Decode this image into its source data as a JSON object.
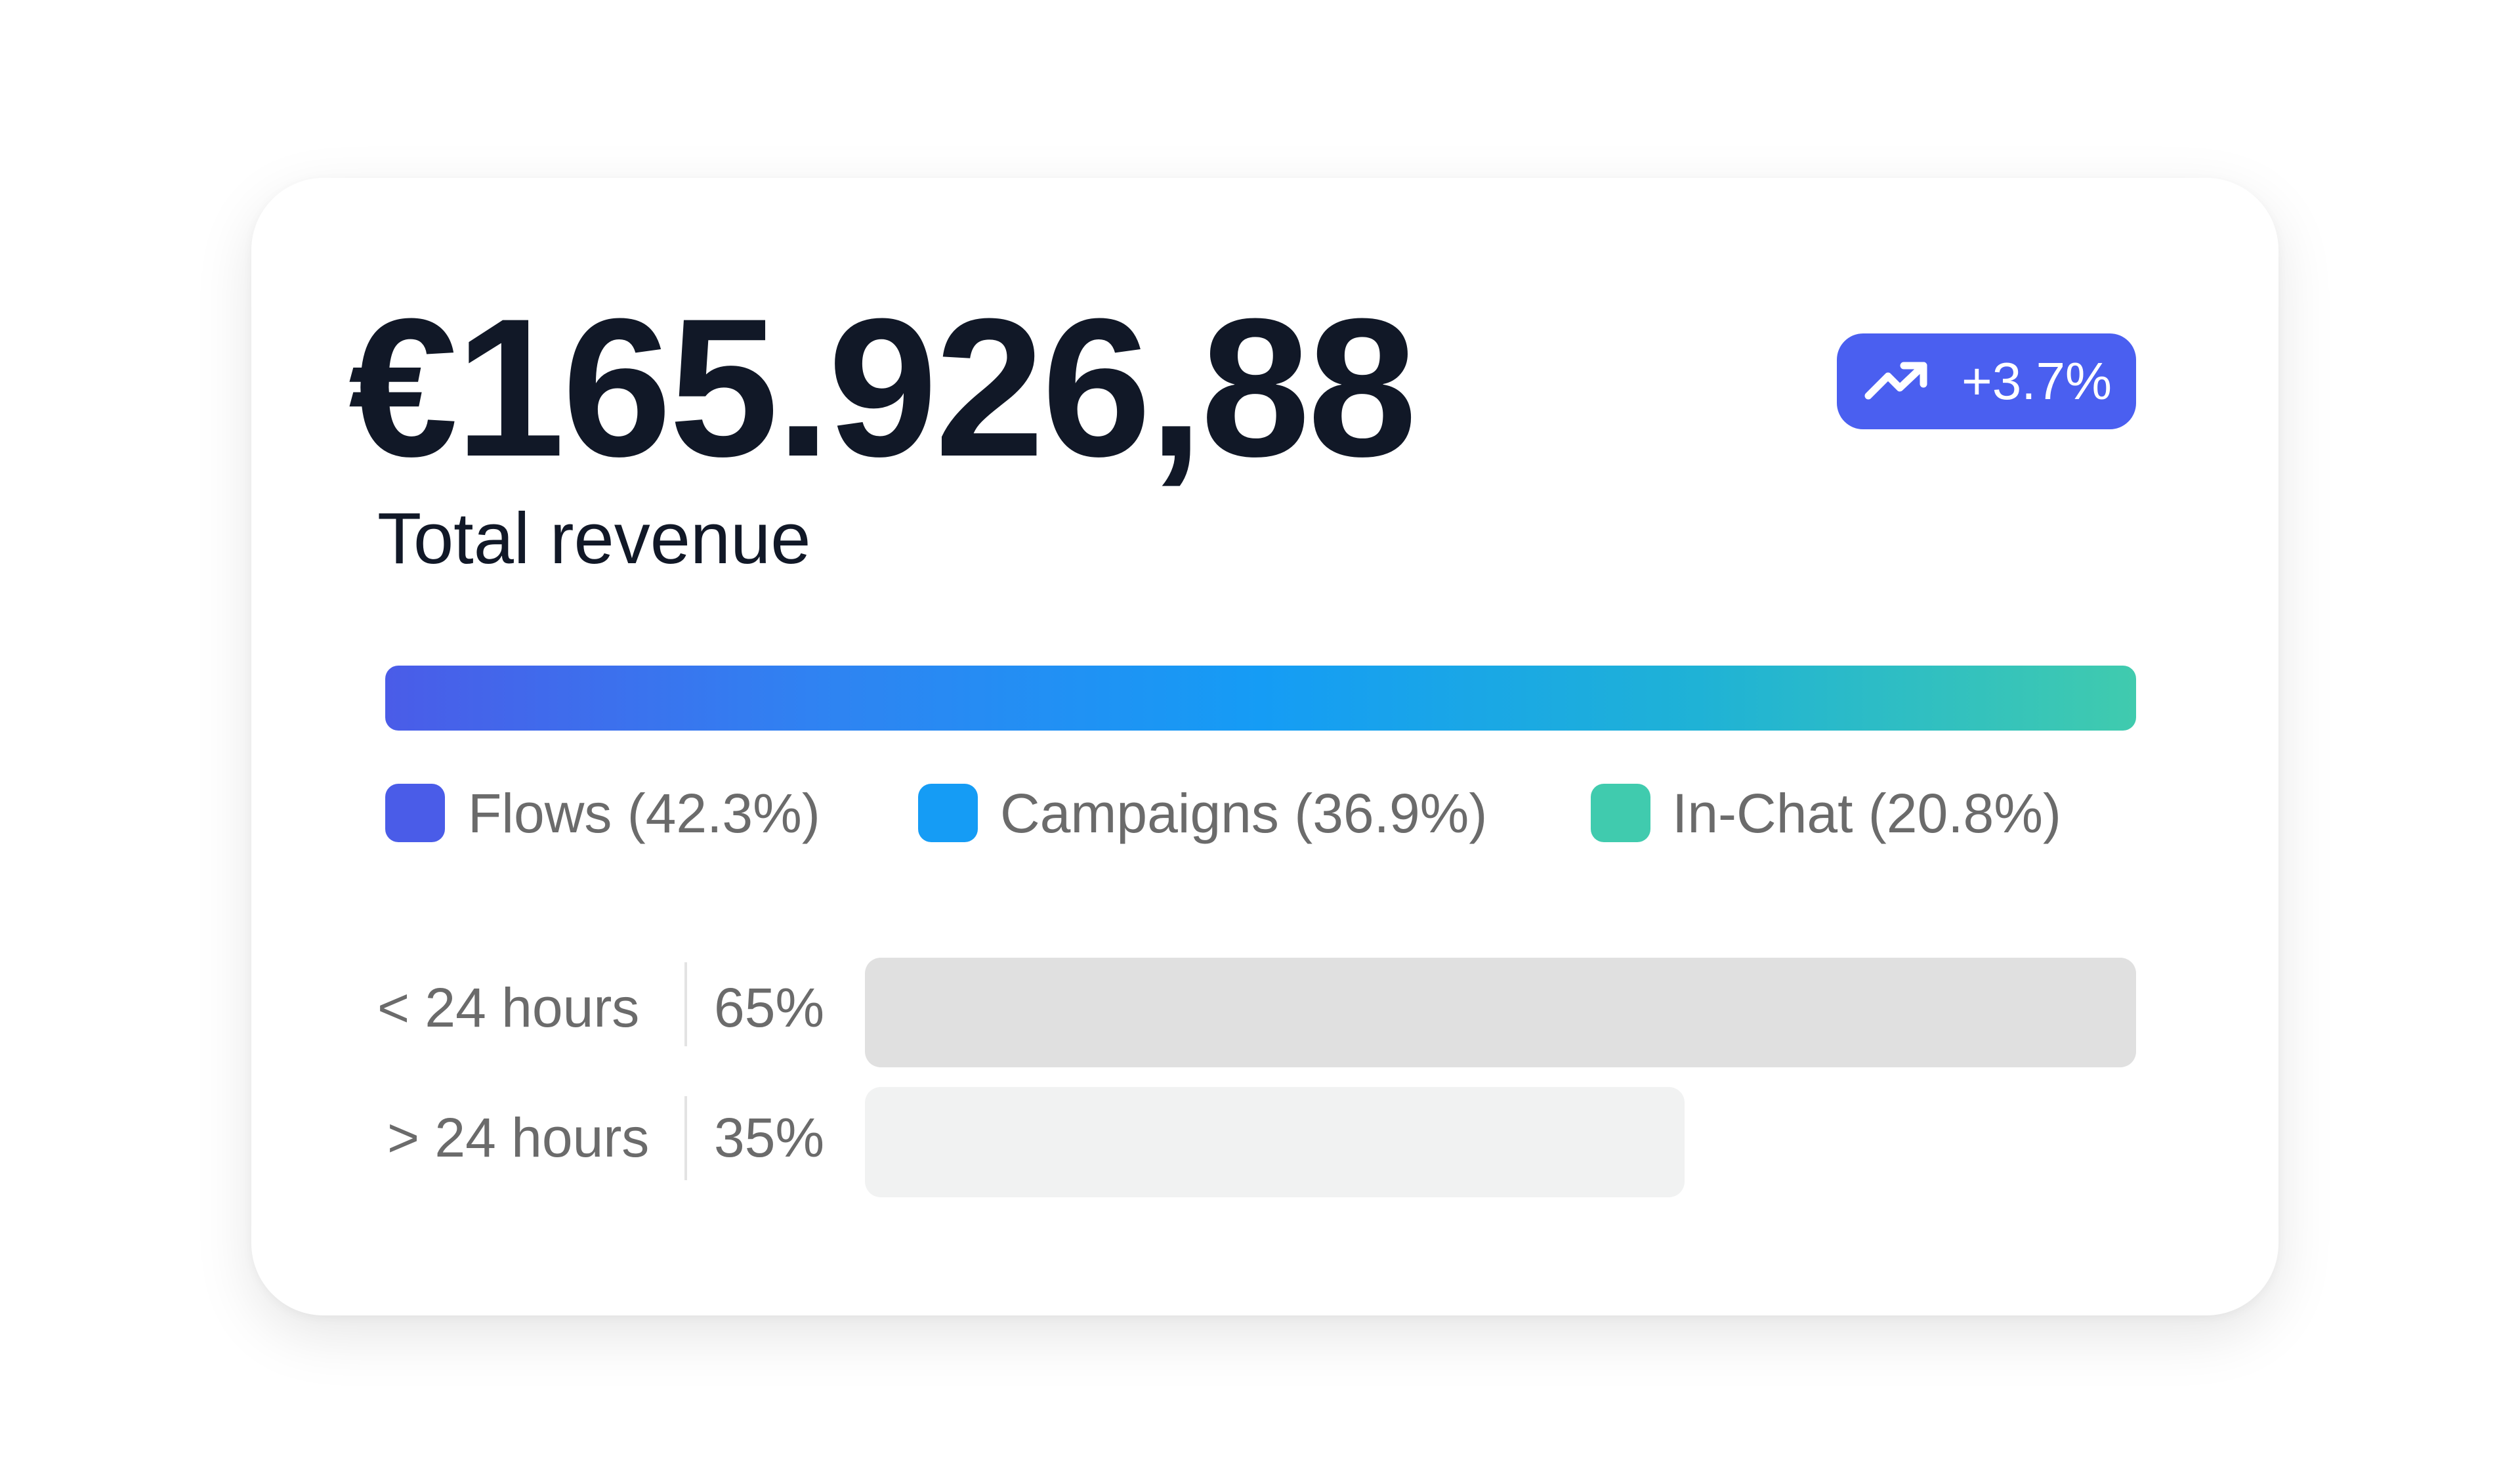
{
  "card": {
    "amount": "€165.926,88",
    "change": "+3.7%",
    "label": "Total revenue",
    "legend": [
      "Flows (42.3%)",
      "Campaigns (36.9%)",
      "In-Chat (20.8%)"
    ],
    "rows": [
      {
        "label": "< 24 hours",
        "value": "65%"
      },
      {
        "label": "> 24 hours",
        "value": "35%"
      }
    ]
  }
}
